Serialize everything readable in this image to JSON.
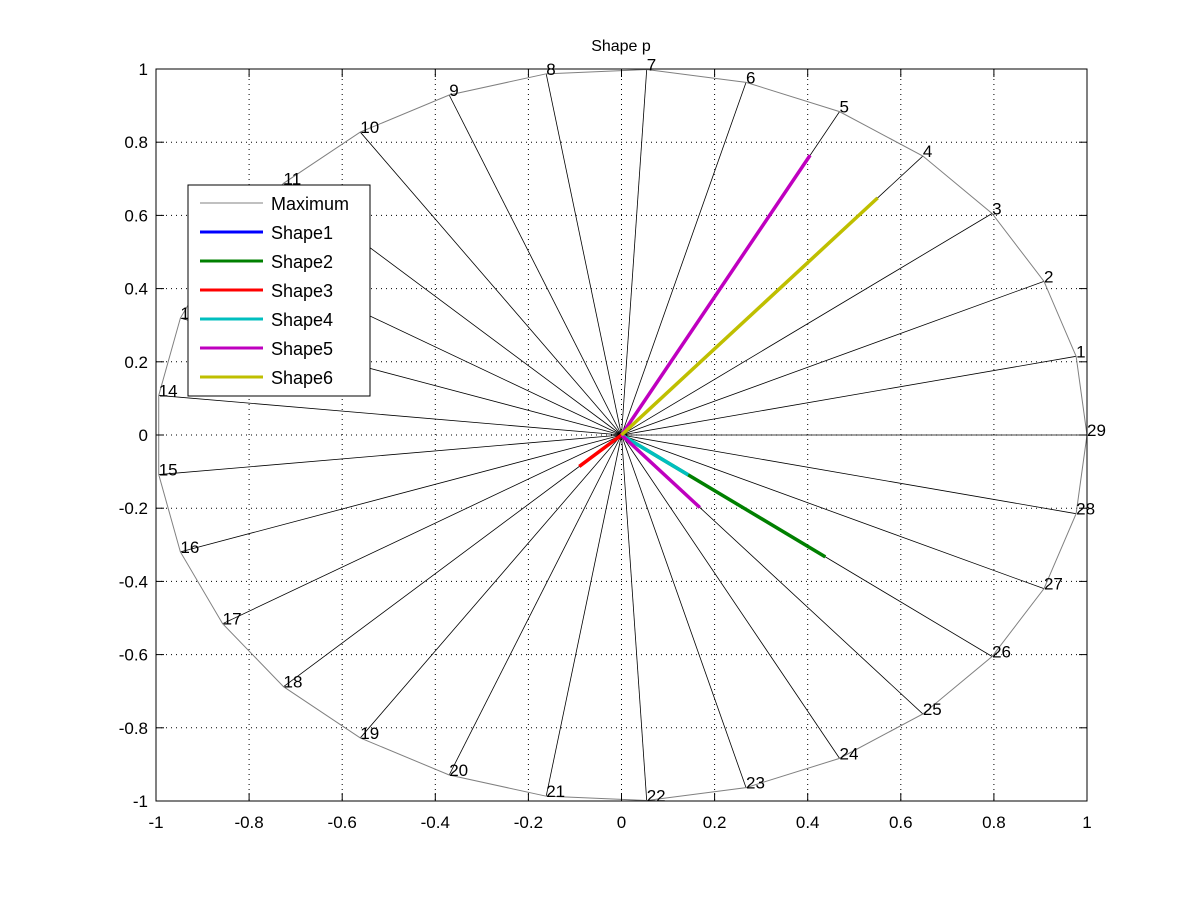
{
  "chart_data": {
    "type": "line",
    "title": "Shape p",
    "xlabel": "",
    "ylabel": "",
    "xlim": [
      -1,
      1
    ],
    "ylim": [
      -1,
      1
    ],
    "xticks": [
      -1,
      -0.8,
      -0.6,
      -0.4,
      -0.2,
      0,
      0.2,
      0.4,
      0.6,
      0.8,
      1
    ],
    "yticks": [
      -1,
      -0.8,
      -0.6,
      -0.4,
      -0.2,
      0,
      0.2,
      0.4,
      0.6,
      0.8,
      1
    ],
    "xtick_labels": [
      "-1",
      "-0.8",
      "-0.6",
      "-0.4",
      "-0.2",
      "0",
      "0.2",
      "0.4",
      "0.6",
      "0.8",
      "1"
    ],
    "ytick_labels": [
      "-1",
      "-0.8",
      "-0.6",
      "-0.4",
      "-0.2",
      "0",
      "0.2",
      "0.4",
      "0.6",
      "0.8",
      "1"
    ],
    "grid": true,
    "spoke_count": 29,
    "spoke_labels": [
      "1",
      "2",
      "3",
      "4",
      "5",
      "6",
      "7",
      "8",
      "9",
      "10",
      "11",
      "12",
      "13",
      "14",
      "15",
      "16",
      "17",
      "18",
      "19",
      "20",
      "21",
      "22",
      "23",
      "24",
      "25",
      "26",
      "27",
      "28",
      "29"
    ],
    "legend_position": "top-left",
    "series": [
      {
        "name": "Maximum",
        "color": "#808080",
        "values": "radius 1 on all spokes"
      },
      {
        "name": "Shape1",
        "color": "#0000ff",
        "segments": []
      },
      {
        "name": "Shape2",
        "color": "#008000",
        "segments": [
          {
            "spoke": 26,
            "value": 0.55
          }
        ]
      },
      {
        "name": "Shape3",
        "color": "#ff0000",
        "segments": [
          {
            "spoke": 18,
            "value": 0.125
          }
        ]
      },
      {
        "name": "Shape4",
        "color": "#00bfbf",
        "segments": [
          {
            "spoke": 26,
            "value": 0.18
          }
        ]
      },
      {
        "name": "Shape5",
        "color": "#bf00bf",
        "segments": [
          {
            "spoke": 5,
            "value": 0.865
          },
          {
            "spoke": 25,
            "value": 0.26
          }
        ]
      },
      {
        "name": "Shape6",
        "color": "#bfbf00",
        "segments": [
          {
            "spoke": 4,
            "value": 0.85
          }
        ]
      }
    ]
  }
}
